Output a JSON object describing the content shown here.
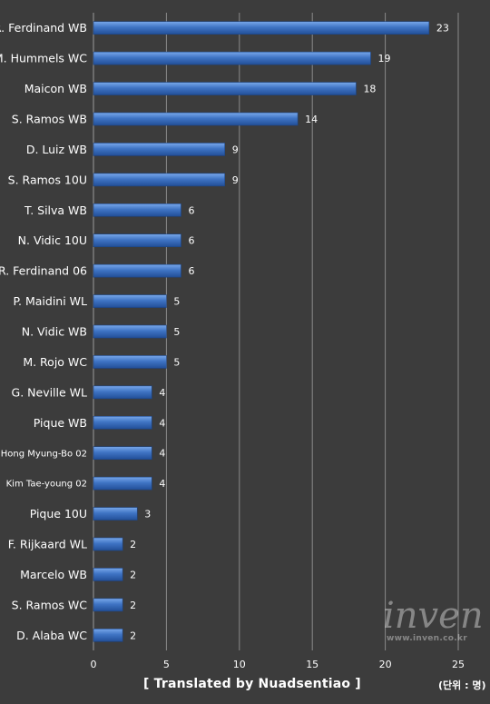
{
  "chart_data": {
    "type": "bar",
    "orientation": "horizontal",
    "categories": [
      "R. Ferdinand WB",
      "M. Hummels WC",
      "Maicon WB",
      "S. Ramos WB",
      "D. Luiz WB",
      "S. Ramos 10U",
      "T. Silva WB",
      "N. Vidic 10U",
      "R. Ferdinand 06",
      "P. Maidini WL",
      "N. Vidic WB",
      "M. Rojo WC",
      "G. Neville WL",
      "Pique WB",
      "Hong Myung-Bo 02",
      "Kim Tae-young 02",
      "Pique 10U",
      "F. Rijkaard WL",
      "Marcelo WB",
      "S. Ramos WC",
      "D. Alaba WC"
    ],
    "values": [
      23,
      19,
      18,
      14,
      9,
      9,
      6,
      6,
      6,
      5,
      5,
      5,
      4,
      4,
      4,
      4,
      3,
      2,
      2,
      2,
      2
    ],
    "xticks": [
      0,
      5,
      10,
      15,
      20,
      25
    ],
    "xlim": [
      0,
      25
    ],
    "grid": "vertical",
    "bar_color": "#3f74c4",
    "data_labels": true
  },
  "footer": {
    "credit": "[ Translated by Nuadsentiao ]",
    "unit": "(단위 : 명)"
  },
  "watermark": {
    "logo": "inven",
    "url": "www.inven.co.kr"
  }
}
